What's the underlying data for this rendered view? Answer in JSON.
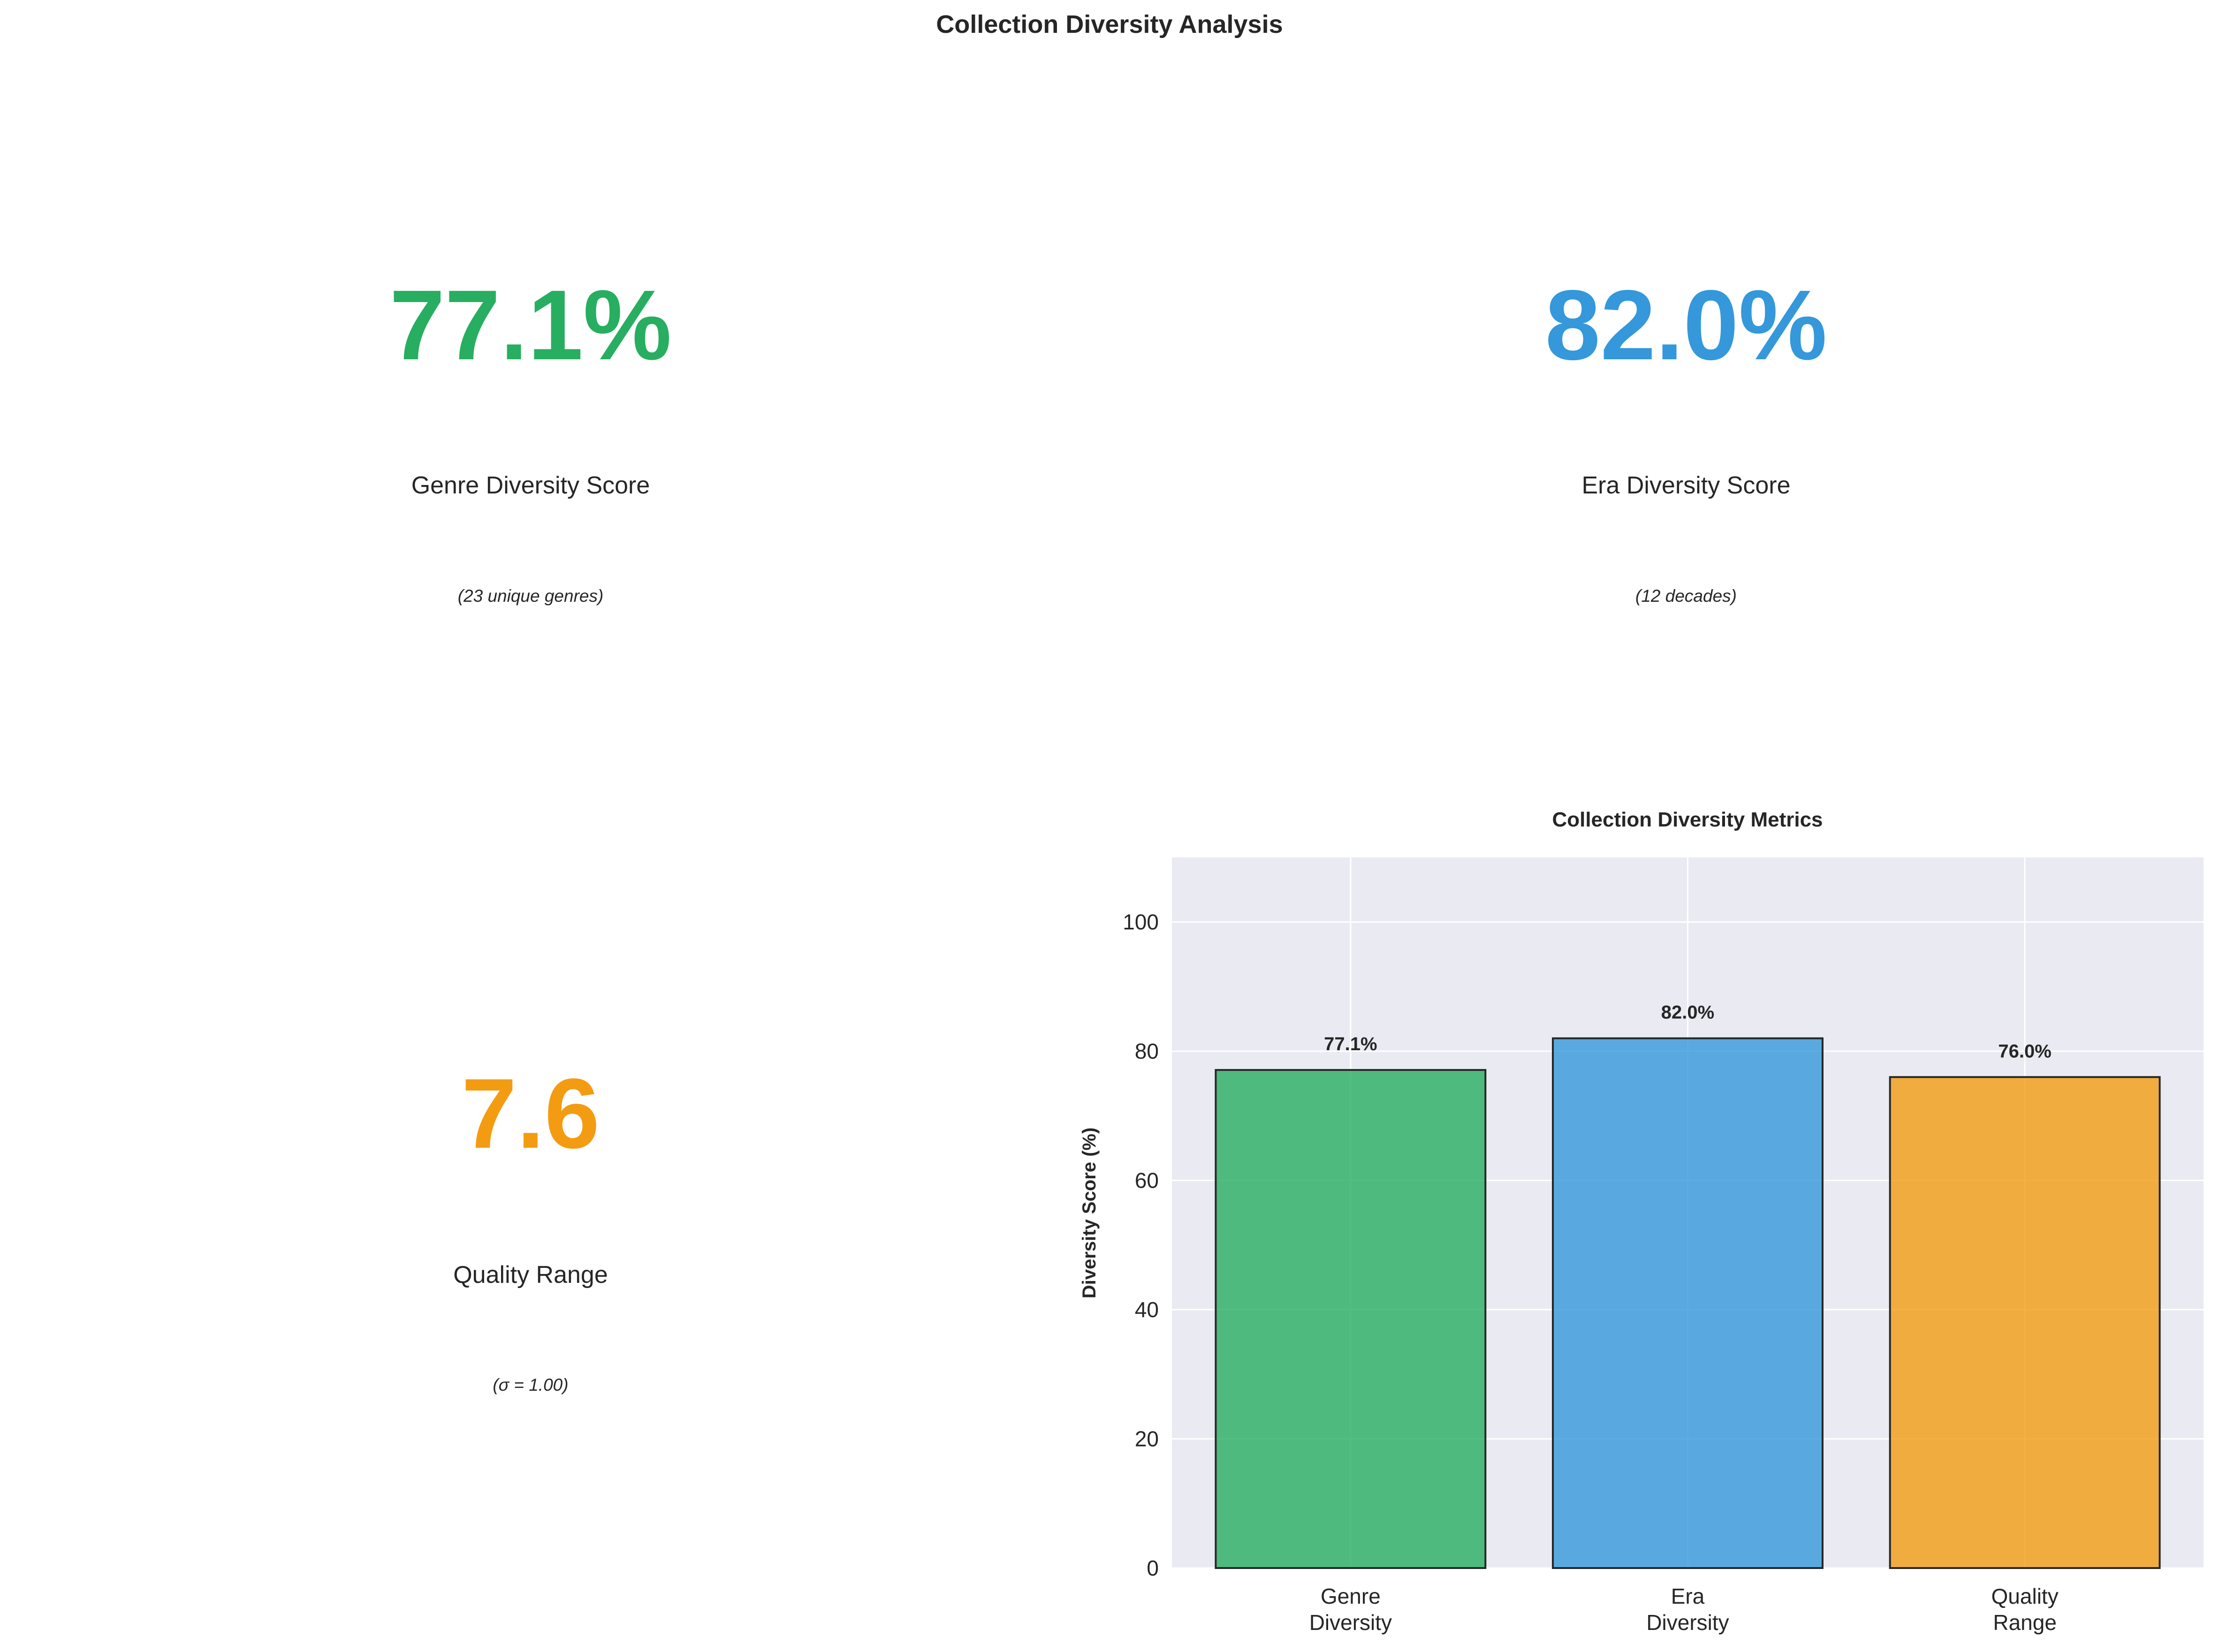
{
  "title": "Collection Diversity Analysis",
  "kpis": [
    {
      "value": "77.1%",
      "label": "Genre Diversity Score",
      "note": "(23 unique genres)",
      "color": "#27ae60"
    },
    {
      "value": "82.0%",
      "label": "Era Diversity Score",
      "note": "(12 decades)",
      "color": "#3498db"
    },
    {
      "value": "7.6",
      "label": "Quality Range",
      "note": "(σ = 1.00)",
      "color": "#f39c12"
    }
  ],
  "chart_data": {
    "type": "bar",
    "title": "Collection Diversity Metrics",
    "xlabel": "",
    "ylabel": "Diversity Score (%)",
    "categories": [
      "Genre\nDiversity",
      "Era\nDiversity",
      "Quality\nRange"
    ],
    "values": [
      77.1,
      82.0,
      76.0
    ],
    "data_labels": [
      "77.1%",
      "82.0%",
      "76.0%"
    ],
    "colors": [
      "#27ae60",
      "#3498db",
      "#f39c12"
    ],
    "ylim": [
      0,
      110
    ],
    "yticks": [
      "0",
      "20",
      "40",
      "60",
      "80",
      "100"
    ],
    "grid": true,
    "background": "#eaeaf2"
  }
}
